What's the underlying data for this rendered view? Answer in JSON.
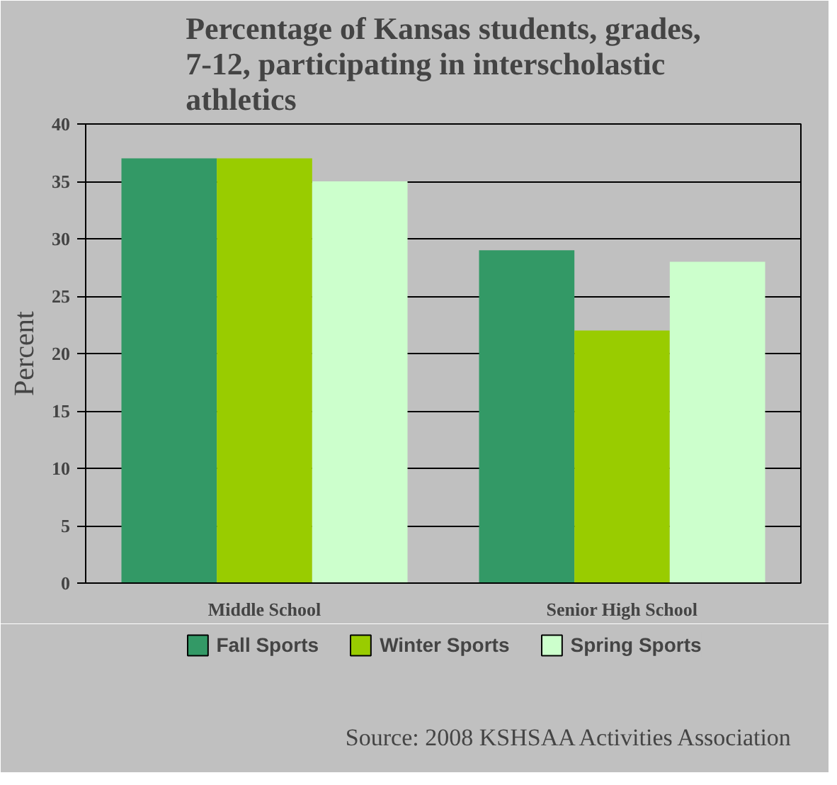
{
  "chart_data": {
    "type": "bar",
    "title": "Percentage of Kansas students, grades,\n7-12, participating in interscholastic\nathletics",
    "ylabel": "Percent",
    "categories": [
      "Middle School",
      "Senior High School"
    ],
    "series": [
      {
        "name": "Fall Sports",
        "color": "#339966",
        "values": [
          37,
          29
        ]
      },
      {
        "name": "Winter Sports",
        "color": "#99cc00",
        "values": [
          37,
          22
        ]
      },
      {
        "name": "Spring Sports",
        "color": "#ccffcc",
        "values": [
          35,
          28
        ]
      }
    ],
    "ylim": [
      0,
      40
    ],
    "yticks": [
      0,
      5,
      10,
      15,
      20,
      25,
      30,
      35,
      40
    ],
    "grid": "y",
    "legend": "bottom",
    "annotations": [
      "Source:  2008 KSHSAA Activities Association"
    ]
  }
}
